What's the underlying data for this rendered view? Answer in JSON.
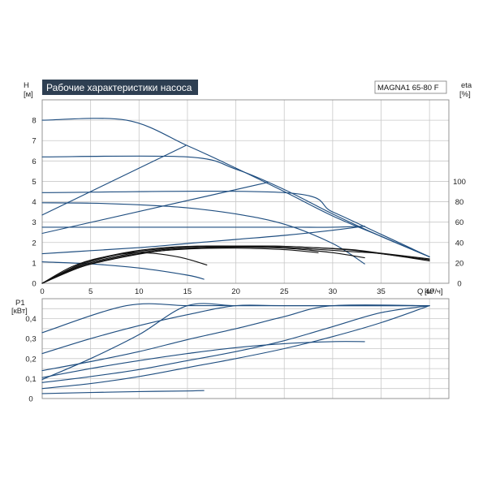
{
  "header": {
    "title": "Рабочие характеристики насоса",
    "model": "MAGNA1 65-80 F"
  },
  "colors": {
    "blue": "#1f4e80",
    "black": "#111111",
    "title_bg": "#2e3f52",
    "grid": "#c8c8c8"
  },
  "chart_data": [
    {
      "type": "line",
      "panel": "head",
      "ylabel": "H",
      "yunit": "[м]",
      "y2label": "eta",
      "y2unit": "[%]",
      "xlabel": "Q",
      "xunit": "[м³/ч]",
      "xlim": [
        0,
        42
      ],
      "ylim": [
        0,
        9
      ],
      "y2lim": [
        0,
        100
      ],
      "x_ticks": [
        "0",
        "5",
        "10",
        "15",
        "20",
        "25",
        "30",
        "35",
        "40"
      ],
      "y_ticks": [
        "0",
        "1",
        "2",
        "3",
        "4",
        "5",
        "6",
        "7",
        "8"
      ],
      "y2_ticks": [
        "0",
        "20",
        "40",
        "60",
        "80",
        "100"
      ],
      "grid": true,
      "head_series": [
        {
          "x": [
            0,
            8.7,
            15,
            20,
            25,
            30,
            35,
            40
          ],
          "y": [
            8,
            8,
            6.75,
            5.65,
            4.5,
            3.3,
            2.3,
            1.3
          ]
        },
        {
          "x": [
            0,
            15,
            20,
            25,
            30,
            35,
            40
          ],
          "y": [
            6.2,
            6.2,
            5.6,
            4.6,
            3.4,
            2.3,
            1.3
          ]
        },
        {
          "x": [
            0,
            25,
            30,
            35,
            40
          ],
          "y": [
            4.45,
            4.45,
            3.5,
            2.4,
            1.3
          ]
        },
        {
          "x": [
            0,
            5,
            10,
            15,
            20,
            25,
            30,
            33.3
          ],
          "y": [
            3.95,
            3.93,
            3.85,
            3.7,
            3.4,
            2.9,
            1.95,
            0.95
          ]
        },
        {
          "x": [
            0,
            5,
            10,
            15,
            20,
            25,
            30,
            33.3
          ],
          "y": [
            2.75,
            2.75,
            2.75,
            2.75,
            2.75,
            2.75,
            2.75,
            2.8
          ]
        },
        {
          "x": [
            0,
            5,
            10,
            15,
            20,
            25,
            30,
            33.3
          ],
          "y": [
            1.45,
            1.6,
            1.75,
            1.95,
            2.15,
            2.35,
            2.6,
            2.8
          ]
        },
        {
          "x": [
            0,
            5,
            10,
            15,
            16.7
          ],
          "y": [
            1.05,
            0.95,
            0.75,
            0.4,
            0.2
          ]
        }
      ],
      "system_lines": [
        {
          "x": [
            0,
            14.8
          ],
          "y": [
            3.35,
            6.75
          ]
        },
        {
          "x": [
            0,
            23.3
          ],
          "y": [
            2.45,
            4.95
          ]
        }
      ],
      "efficiency_series": [
        {
          "x": [
            0,
            3,
            6,
            10,
            14,
            17
          ],
          "y": [
            0,
            16,
            25,
            30,
            26,
            18
          ]
        },
        {
          "x": [
            0,
            4,
            8,
            12,
            16,
            20,
            25,
            28.5
          ],
          "y": [
            0,
            16,
            25,
            31.5,
            34,
            34.5,
            33,
            30
          ]
        },
        {
          "x": [
            0,
            4,
            8,
            12,
            16,
            20,
            25,
            30,
            33.3
          ],
          "y": [
            0,
            16,
            26,
            31.5,
            34.5,
            35.5,
            34.5,
            30,
            25
          ]
        },
        {
          "x": [
            0,
            4,
            8,
            12,
            16,
            20,
            24,
            28,
            32,
            35,
            40
          ],
          "y": [
            0,
            17,
            27,
            32.5,
            35,
            36,
            35.5,
            33.5,
            31,
            29,
            22
          ]
        },
        {
          "x": [
            0,
            4,
            8,
            12,
            16,
            20,
            24,
            28,
            32,
            35,
            40
          ],
          "y": [
            0,
            18,
            28.5,
            33.5,
            36,
            36.5,
            36.5,
            35,
            32.5,
            29,
            23
          ]
        },
        {
          "x": [
            0,
            4,
            8,
            12,
            16,
            20,
            24,
            28,
            32,
            35,
            40
          ],
          "y": [
            0,
            19,
            29,
            34.5,
            36.5,
            36.5,
            36.5,
            35,
            33,
            29.5,
            24
          ]
        }
      ]
    },
    {
      "type": "line",
      "panel": "power",
      "ylabel": "P1",
      "yunit": "[кВт]",
      "xlim": [
        0,
        42
      ],
      "ylim": [
        0,
        0.5
      ],
      "y_ticks": [
        "0",
        "0,1",
        "0,2",
        "0,3",
        "0,4"
      ],
      "grid": true,
      "series": [
        {
          "x": [
            0,
            8.7,
            15,
            20,
            25,
            30,
            35,
            40
          ],
          "y": [
            0.33,
            0.465,
            0.465,
            0.465,
            0.465,
            0.465,
            0.465,
            0.465
          ]
        },
        {
          "x": [
            0,
            5,
            10,
            15,
            20,
            25,
            40
          ],
          "y": [
            0.225,
            0.3,
            0.365,
            0.42,
            0.465,
            0.465,
            0.465
          ]
        },
        {
          "x": [
            0,
            5,
            10,
            15,
            20,
            25,
            30,
            40
          ],
          "y": [
            0.14,
            0.185,
            0.235,
            0.295,
            0.35,
            0.41,
            0.465,
            0.465
          ]
        },
        {
          "x": [
            0,
            5,
            10,
            15,
            20,
            25,
            30,
            33.3
          ],
          "y": [
            0.105,
            0.15,
            0.19,
            0.225,
            0.255,
            0.275,
            0.285,
            0.285
          ]
        },
        {
          "x": [
            0,
            5,
            10,
            15,
            20,
            25,
            30,
            35,
            40
          ],
          "y": [
            0.08,
            0.11,
            0.145,
            0.19,
            0.235,
            0.29,
            0.36,
            0.43,
            0.465
          ]
        },
        {
          "x": [
            0,
            5,
            10,
            15,
            20,
            25,
            30,
            35,
            40
          ],
          "y": [
            0.05,
            0.075,
            0.11,
            0.155,
            0.2,
            0.25,
            0.31,
            0.38,
            0.465
          ]
        },
        {
          "x": [
            0,
            5,
            10,
            15,
            16.7
          ],
          "y": [
            0.025,
            0.03,
            0.035,
            0.038,
            0.04
          ]
        },
        {
          "x": [
            0,
            5,
            10,
            15,
            20,
            25,
            30,
            35,
            40
          ],
          "y": [
            0.095,
            0.2,
            0.32,
            0.465,
            0.465,
            0.465,
            0.465,
            0.465,
            0.465
          ]
        }
      ]
    }
  ]
}
